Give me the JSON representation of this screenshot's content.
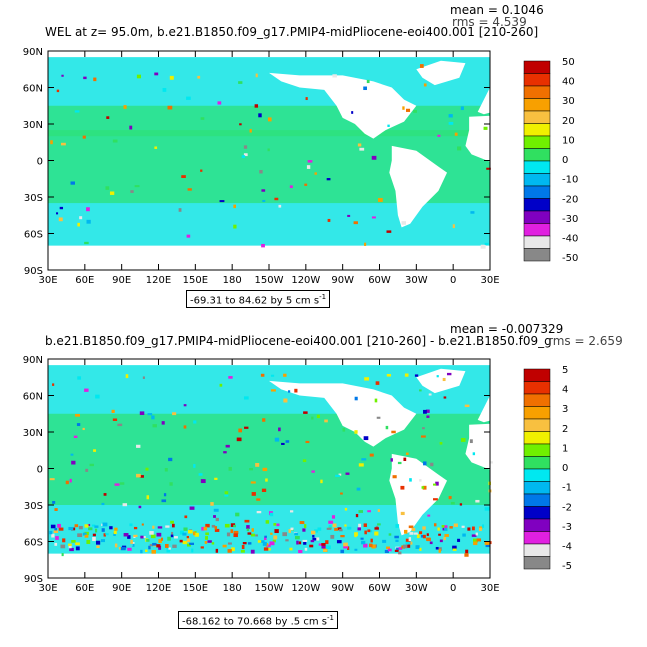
{
  "lat_labels": [
    "90N",
    "60N",
    "30N",
    "0",
    "30S",
    "60S",
    "90S"
  ],
  "lon_labels": [
    "30E",
    "60E",
    "90E",
    "120E",
    "150E",
    "180",
    "150W",
    "120W",
    "90W",
    "60W",
    "30W",
    "0",
    "30E"
  ],
  "colors": {
    "land": "#ffffff",
    "ocean_base": "#33e8e8",
    "ocean_green": "#2ee27a",
    "colorbar": [
      "#888888",
      "#e8e8e8",
      "#e020e0",
      "#8000c0",
      "#0000c8",
      "#0078e8",
      "#00b8f0",
      "#00e8f0",
      "#30e060",
      "#70f000",
      "#f0f000",
      "#f8c040",
      "#f8a000",
      "#f07000",
      "#e83000",
      "#c00000"
    ]
  },
  "panels": [
    {
      "title": "WEL at z=  95.0m, b.e21.B1850.f09_g17.PMIP4-midPliocene-eoi400.001  [210-260]",
      "mean": "mean = 0.1046",
      "rms": "rms = 4.539",
      "range": "-69.31 to 84.62 by 5 cm s",
      "range_sup": "-1",
      "colorbar_labels": [
        "50",
        "40",
        "30",
        "20",
        "10",
        "0",
        "-10",
        "-20",
        "-30",
        "-40",
        "-50"
      ]
    },
    {
      "title": "b.e21.B1850.f09_g17.PMIP4-midPliocene-eoi400.001  [210-260] - b.e21.B1850.f09_g",
      "mean": "mean = -0.007329",
      "rms": "rms = 2.659",
      "range": "-68.162 to 70.668 by .5 cm s",
      "range_sup": "-1",
      "colorbar_labels": [
        "5",
        "4",
        "3",
        "2",
        "1",
        "0",
        "-1",
        "-2",
        "-3",
        "-4",
        "-5"
      ]
    }
  ]
}
